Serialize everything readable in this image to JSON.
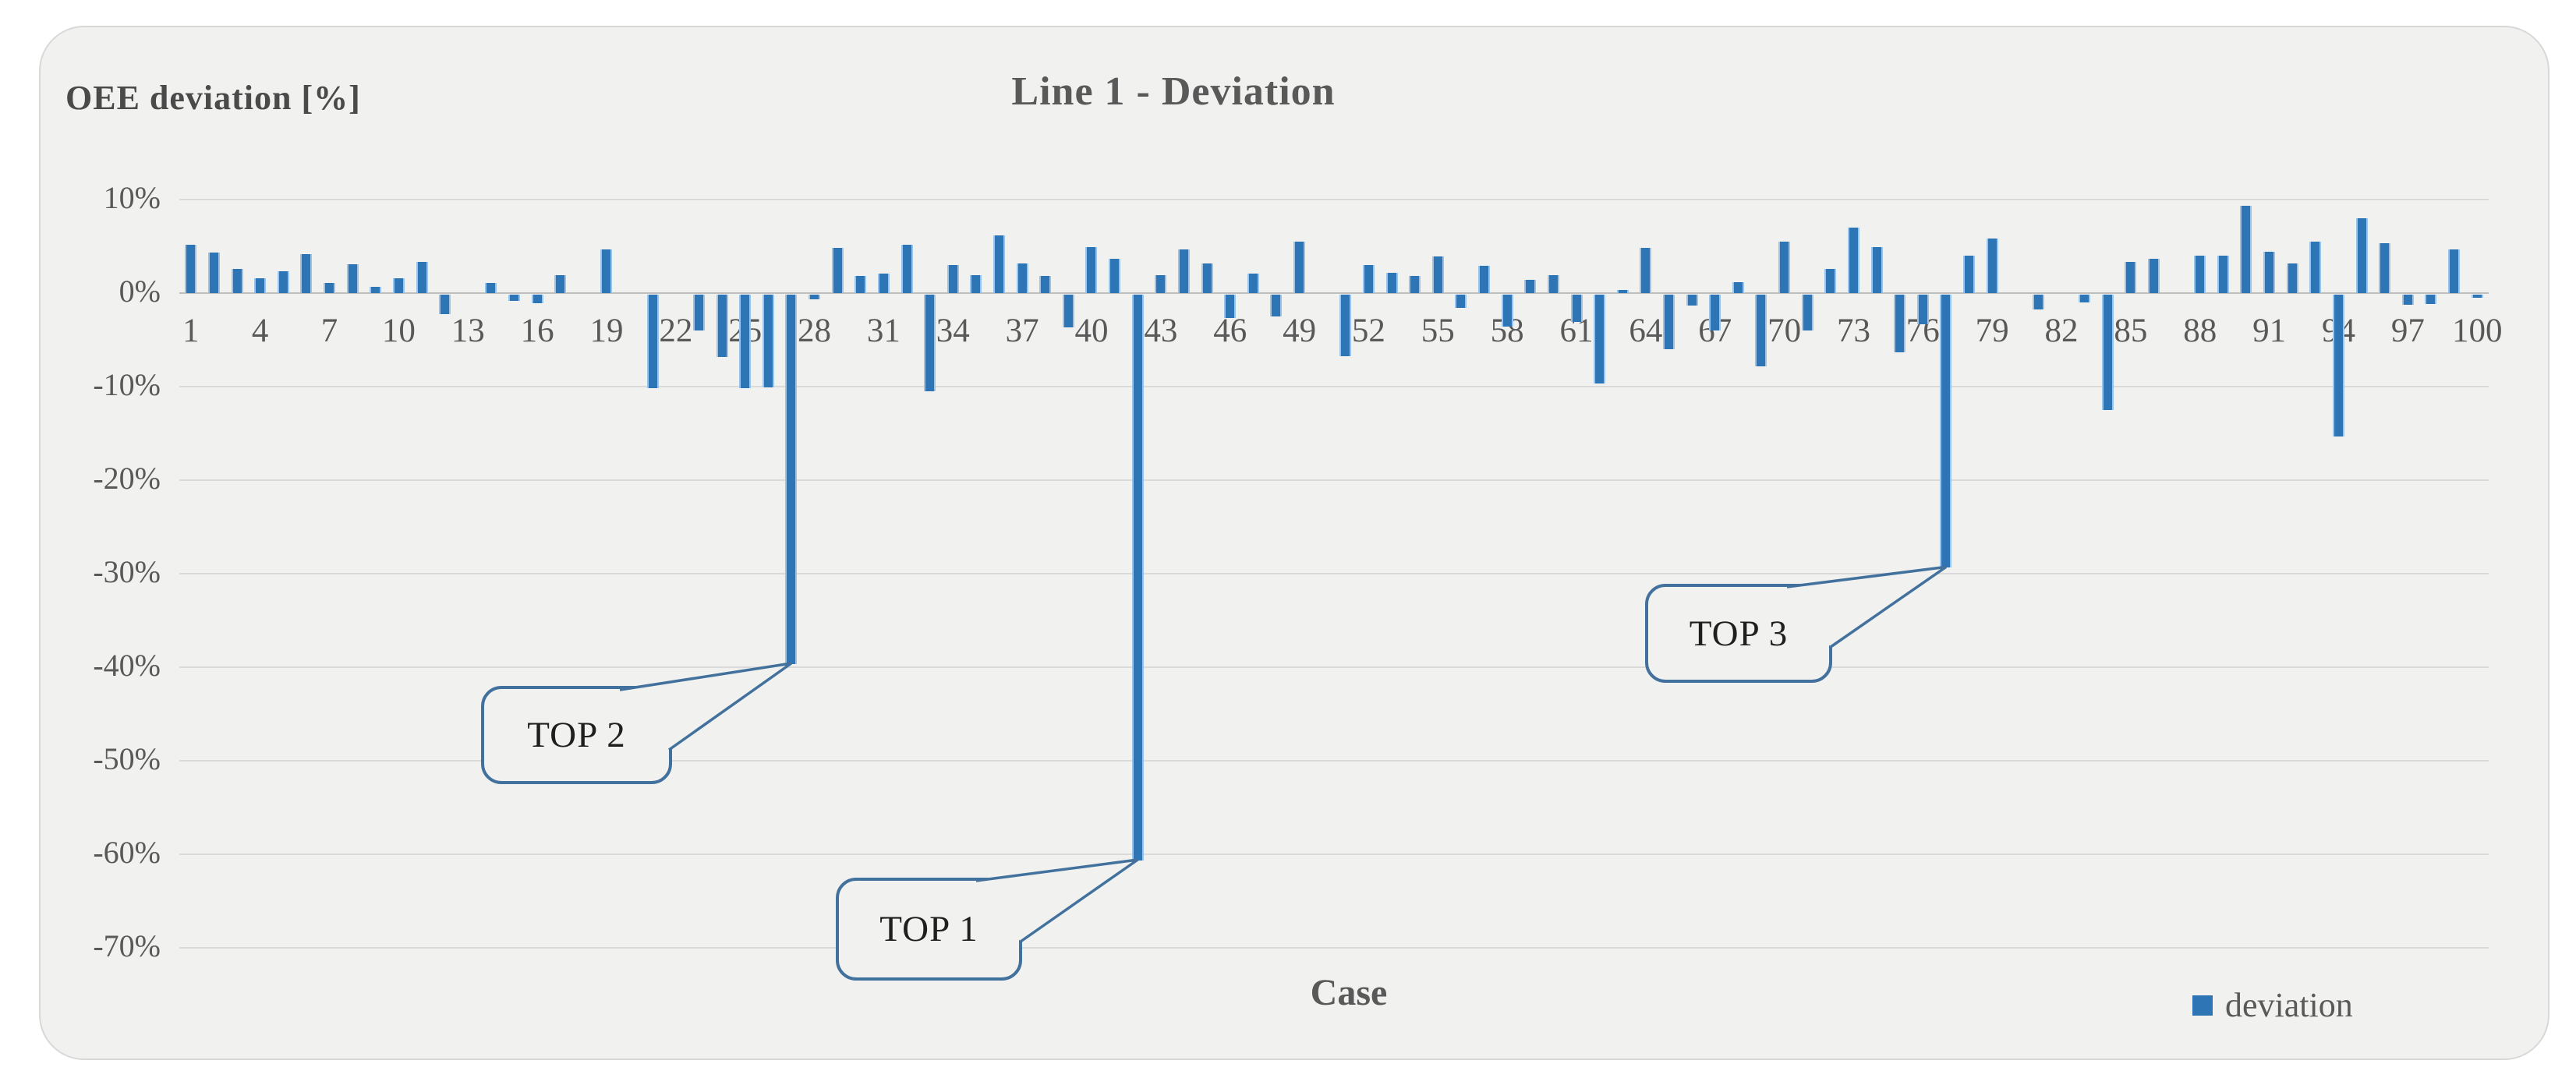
{
  "chart_data": {
    "type": "bar",
    "title": "Line 1 - Deviation",
    "y_axis_title": "OEE deviation [%]",
    "x_axis_title": "Case",
    "legend": [
      {
        "label": "deviation",
        "color": "#2E75B6"
      }
    ],
    "ylim": [
      -70,
      10
    ],
    "grid": true,
    "ytick_labels": [
      "10%",
      "0%",
      "-10%",
      "-20%",
      "-30%",
      "-40%",
      "-50%",
      "-60%",
      "-70%"
    ],
    "ytick_values": [
      10,
      0,
      -10,
      -20,
      -30,
      -40,
      -50,
      -60,
      -70
    ],
    "xticks": [
      1,
      4,
      7,
      10,
      13,
      16,
      19,
      22,
      25,
      28,
      31,
      34,
      37,
      40,
      43,
      46,
      49,
      52,
      55,
      58,
      61,
      64,
      67,
      70,
      73,
      76,
      79,
      82,
      85,
      88,
      91,
      94,
      97,
      100
    ],
    "values": [
      5.2,
      4.3,
      2.6,
      1.6,
      2.3,
      4.2,
      1.1,
      3.1,
      0.7,
      1.6,
      3.3,
      -2.1,
      0,
      1.1,
      -0.7,
      -0.9,
      1.9,
      0,
      4.7,
      0,
      -10,
      0,
      -3.8,
      -6.7,
      -10,
      -9.9,
      -39.5,
      -0.5,
      4.8,
      1.8,
      2.1,
      5.2,
      -10.3,
      3,
      1.9,
      6.2,
      3.2,
      1.8,
      -3.5,
      4.9,
      3.7,
      -60.5,
      1.9,
      4.7,
      3.2,
      -2.5,
      2.1,
      -2.3,
      5.5,
      0,
      -6.6,
      3,
      2.2,
      1.8,
      3.9,
      -1.4,
      2.9,
      -3.4,
      1.4,
      1.9,
      -2.9,
      -9.5,
      0.3,
      4.8,
      -5.8,
      -1.2,
      -3.8,
      1.2,
      -7.7,
      5.5,
      -3.8,
      2.6,
      7,
      4.9,
      -6.2,
      -3.2,
      -29.2,
      4,
      5.8,
      0,
      -1.6,
      0,
      -0.8,
      -12.3,
      3.3,
      3.7,
      0,
      4,
      4,
      9.3,
      4.4,
      3.2,
      5.5,
      -15.2,
      8,
      5.3,
      -1.1,
      -1,
      4.7,
      -0.3
    ],
    "callouts": [
      {
        "label": "TOP 1",
        "case": 42,
        "value": -60.5
      },
      {
        "label": "TOP 2",
        "case": 27,
        "value": -39.5
      },
      {
        "label": "TOP 3",
        "case": 77,
        "value": -29.2
      }
    ],
    "colors": {
      "bar": "#2E75B6",
      "bar_edge": "#9DC3E6",
      "callout_border": "#41719C",
      "grid": "#dadada",
      "zero_line": "#bfbfbf",
      "panel_bg": "#f1f1ef",
      "text": "#595959"
    }
  }
}
